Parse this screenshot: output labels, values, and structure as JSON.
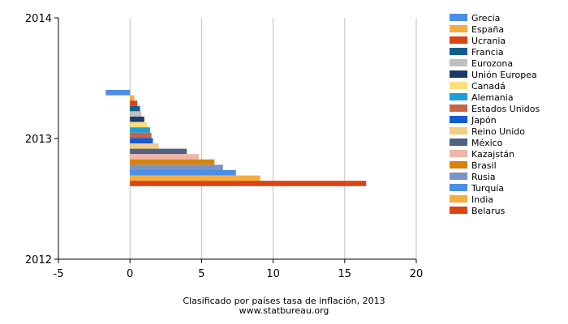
{
  "chart_data": {
    "type": "bar",
    "orientation": "horizontal",
    "title": "",
    "caption": "Clasificado por países tasa de inflación, 2013",
    "source": "www.statbureau.org",
    "xlim": [
      -5,
      20
    ],
    "x_ticks": [
      "-5",
      "0",
      "5",
      "10",
      "15",
      "20"
    ],
    "x_tick_values": [
      -5,
      0,
      5,
      10,
      15,
      20
    ],
    "ylim": [
      2012,
      2014
    ],
    "y_ticks": [
      "2012",
      "2013",
      "2014"
    ],
    "y_tick_values": [
      2012,
      2013,
      2014
    ],
    "category": "2013",
    "grid": true,
    "legend_position": "right",
    "series": [
      {
        "name": "Grecia",
        "value": -1.7,
        "color": "#4a8ee8"
      },
      {
        "name": "España",
        "value": 0.3,
        "color": "#f6ad40"
      },
      {
        "name": "Ucrania",
        "value": 0.5,
        "color": "#dc4413"
      },
      {
        "name": "Francia",
        "value": 0.7,
        "color": "#135e8a"
      },
      {
        "name": "Eurozona",
        "value": 0.8,
        "color": "#c0c0c0"
      },
      {
        "name": "Unión Europea",
        "value": 1.0,
        "color": "#1b3a6b"
      },
      {
        "name": "Canadá",
        "value": 1.2,
        "color": "#fddf7e"
      },
      {
        "name": "Alemania",
        "value": 1.4,
        "color": "#1e9ed7"
      },
      {
        "name": "Estados Unidos",
        "value": 1.5,
        "color": "#c8634a"
      },
      {
        "name": "Japón",
        "value": 1.6,
        "color": "#155bd2"
      },
      {
        "name": "Reino Unido",
        "value": 2.0,
        "color": "#f2cd82"
      },
      {
        "name": "México",
        "value": 3.97,
        "color": "#4f6280"
      },
      {
        "name": "Kazajstán",
        "value": 4.8,
        "color": "#f0b4a8"
      },
      {
        "name": "Brasil",
        "value": 5.9,
        "color": "#d8820c"
      },
      {
        "name": "Rusia",
        "value": 6.5,
        "color": "#7a93c6"
      },
      {
        "name": "Turquía",
        "value": 7.4,
        "color": "#4a8ee8"
      },
      {
        "name": "India",
        "value": 9.1,
        "color": "#f6ad40"
      },
      {
        "name": "Belarus",
        "value": 16.5,
        "color": "#dc4413"
      }
    ]
  }
}
